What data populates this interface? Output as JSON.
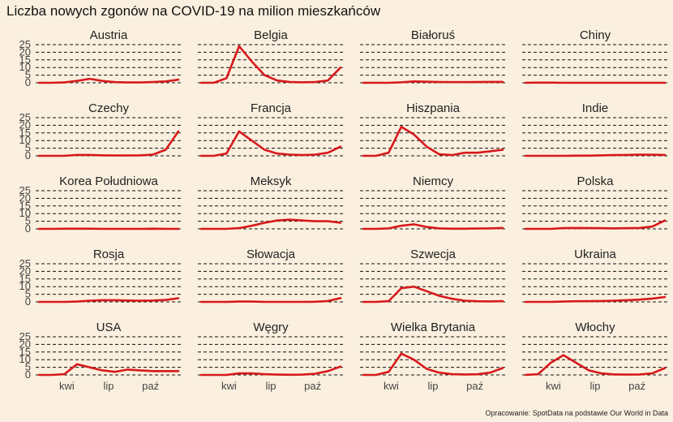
{
  "title": "Liczba nowych zgonów na COVID-19 na milion mieszkańców",
  "caption": "Opracowanie: SpotData na podstawie Our World in Data",
  "chart_data": {
    "type": "line",
    "layout": "small-multiples",
    "ylim": [
      0,
      25
    ],
    "yticks": [
      0,
      5,
      10,
      15,
      20,
      25
    ],
    "xlim": [
      0,
      10
    ],
    "xticks": [
      {
        "x": 2,
        "label": "kwi"
      },
      {
        "x": 5,
        "label": "lip"
      },
      {
        "x": 8,
        "label": "paź"
      }
    ],
    "grid": "dashed horizontal",
    "line_color": "#d7191c",
    "panels": [
      {
        "name": "Austria",
        "values": [
          0,
          0,
          0.2,
          1.2,
          2.6,
          1.2,
          0.4,
          0.2,
          0.2,
          0.5,
          0.9,
          2.0
        ]
      },
      {
        "name": "Belgia",
        "values": [
          0,
          0,
          3,
          24,
          14,
          5,
          1.5,
          0.5,
          0.3,
          0.5,
          1.5,
          10
        ]
      },
      {
        "name": "Białoruś",
        "values": [
          0,
          0,
          0,
          0.3,
          0.9,
          0.7,
          0.5,
          0.4,
          0.4,
          0.5,
          0.6,
          0.6
        ]
      },
      {
        "name": "Chiny",
        "values": [
          0,
          0.1,
          0.1,
          0,
          0,
          0,
          0,
          0,
          0,
          0,
          0,
          0
        ]
      },
      {
        "name": "Czechy",
        "values": [
          0,
          0,
          0,
          0.6,
          0.6,
          0.3,
          0.2,
          0.2,
          0.3,
          0.8,
          4,
          16
        ]
      },
      {
        "name": "Francja",
        "values": [
          0,
          0,
          1.5,
          16,
          10,
          4,
          1.5,
          0.8,
          0.5,
          0.8,
          2,
          6
        ]
      },
      {
        "name": "Hiszpania",
        "values": [
          0,
          0,
          2,
          19,
          14,
          6,
          1,
          0.5,
          2,
          2,
          3,
          4
        ]
      },
      {
        "name": "Indie",
        "values": [
          0,
          0,
          0,
          0,
          0.1,
          0.1,
          0.3,
          0.5,
          0.6,
          0.8,
          0.7,
          0.6
        ]
      },
      {
        "name": "Korea Południowa",
        "values": [
          0,
          0,
          0.1,
          0.1,
          0.1,
          0,
          0,
          0,
          0,
          0.1,
          0,
          0
        ]
      },
      {
        "name": "Meksyk",
        "values": [
          0,
          0,
          0,
          0.5,
          2,
          4,
          5.5,
          6,
          5.5,
          5,
          5,
          4
        ]
      },
      {
        "name": "Niemcy",
        "values": [
          0,
          0,
          0.3,
          2,
          3,
          1.2,
          0.3,
          0.1,
          0.1,
          0.2,
          0.3,
          0.6
        ]
      },
      {
        "name": "Polska",
        "values": [
          0,
          0,
          0,
          0.5,
          0.6,
          0.5,
          0.4,
          0.3,
          0.4,
          0.6,
          1.5,
          5.5
        ]
      },
      {
        "name": "Rosja",
        "values": [
          0,
          0,
          0,
          0.2,
          0.8,
          1.1,
          1.1,
          0.9,
          0.8,
          0.9,
          1.3,
          2.4
        ]
      },
      {
        "name": "Słowacja",
        "values": [
          0,
          0,
          0,
          0.2,
          0.2,
          0,
          0,
          0,
          0,
          0.1,
          0.6,
          2.5
        ]
      },
      {
        "name": "Szwecja",
        "values": [
          0,
          0,
          0.5,
          9,
          10,
          7,
          4,
          2,
          0.8,
          0.4,
          0.3,
          0.5
        ]
      },
      {
        "name": "Ukraina",
        "values": [
          0,
          0,
          0,
          0.2,
          0.4,
          0.5,
          0.6,
          0.8,
          1.1,
          1.5,
          2.2,
          3.2
        ]
      },
      {
        "name": "USA",
        "values": [
          0,
          0,
          0.5,
          7,
          5,
          3,
          2,
          3.5,
          3,
          2.5,
          2.5,
          2.5
        ]
      },
      {
        "name": "Węgry",
        "values": [
          0,
          0,
          0,
          1,
          1,
          0.5,
          0.2,
          0.1,
          0.2,
          0.8,
          2.5,
          5.5
        ]
      },
      {
        "name": "Wielka Brytania",
        "values": [
          0,
          0,
          2,
          14,
          10,
          4,
          1.5,
          0.5,
          0.3,
          0.4,
          1.5,
          4.5
        ]
      },
      {
        "name": "Włochy",
        "values": [
          0,
          0.5,
          8,
          13,
          8,
          3,
          1,
          0.3,
          0.2,
          0.3,
          1,
          4.5
        ]
      }
    ]
  }
}
